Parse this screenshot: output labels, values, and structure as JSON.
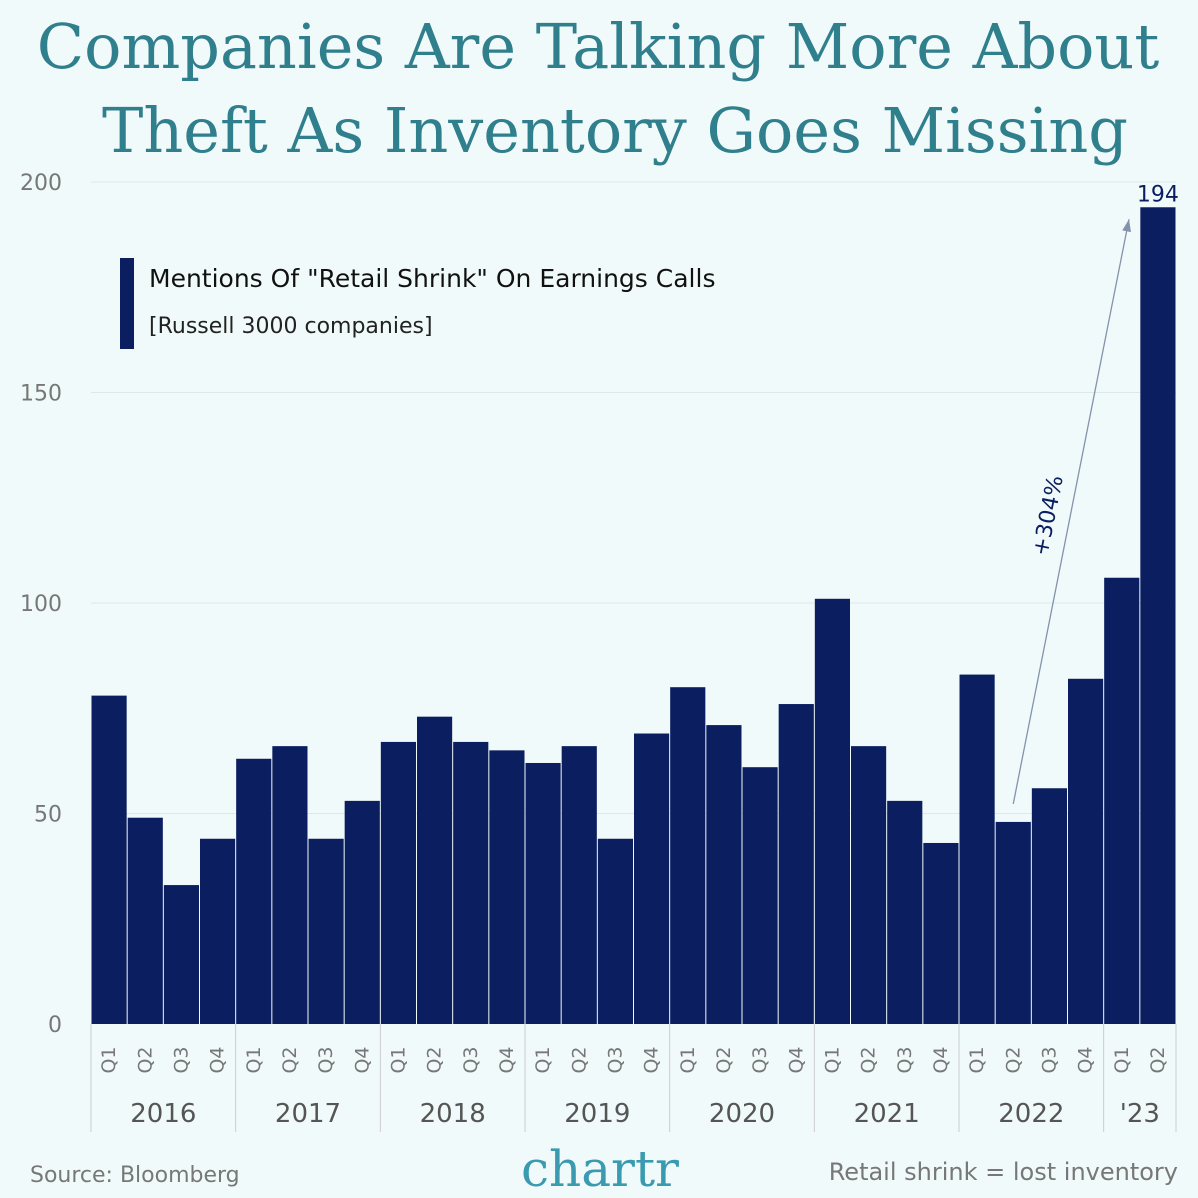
{
  "chart_data": {
    "type": "bar",
    "title": "Companies Are Talking More About Theft As Inventory Goes Missing",
    "legend": {
      "label": "Mentions Of \"Retail Shrink\" On Earnings Calls",
      "sublabel": "[Russell 3000 companies]",
      "placement": "top-left"
    },
    "ylim": [
      0,
      200
    ],
    "yticks": [
      0,
      50,
      100,
      150,
      200
    ],
    "grid": true,
    "groups": [
      {
        "label": "2016",
        "quarters": [
          "Q1",
          "Q2",
          "Q3",
          "Q4"
        ]
      },
      {
        "label": "2017",
        "quarters": [
          "Q1",
          "Q2",
          "Q3",
          "Q4"
        ]
      },
      {
        "label": "2018",
        "quarters": [
          "Q1",
          "Q2",
          "Q3",
          "Q4"
        ]
      },
      {
        "label": "2019",
        "quarters": [
          "Q1",
          "Q2",
          "Q3",
          "Q4"
        ]
      },
      {
        "label": "2020",
        "quarters": [
          "Q1",
          "Q2",
          "Q3",
          "Q4"
        ]
      },
      {
        "label": "2021",
        "quarters": [
          "Q1",
          "Q2",
          "Q3",
          "Q4"
        ]
      },
      {
        "label": "2022",
        "quarters": [
          "Q1",
          "Q2",
          "Q3",
          "Q4"
        ]
      },
      {
        "label": "'23",
        "quarters": [
          "Q1",
          "Q2"
        ]
      }
    ],
    "values": [
      78,
      49,
      33,
      44,
      63,
      66,
      44,
      53,
      67,
      73,
      67,
      65,
      62,
      66,
      44,
      69,
      80,
      71,
      61,
      76,
      101,
      66,
      53,
      43,
      83,
      48,
      56,
      82,
      106,
      194
    ],
    "data_labels": [
      {
        "index": 29,
        "text": "194"
      }
    ],
    "annotation": {
      "text": "+304%",
      "from_index": 25,
      "to_index": 29
    },
    "colors": {
      "bar": "#0b1f60",
      "title": "#2f7f8d",
      "arrow": "#8492ad",
      "background": "#f1fafa"
    }
  },
  "footer": {
    "source": "Source: Bloomberg",
    "brand": "chartr",
    "note": "Retail shrink = lost inventory"
  }
}
